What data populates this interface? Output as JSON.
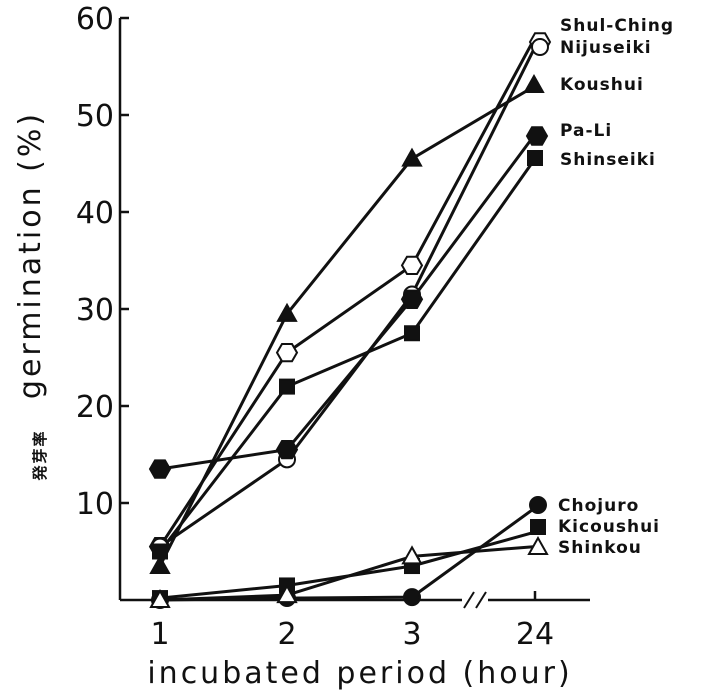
{
  "chart_data": {
    "type": "line",
    "title": "",
    "xlabel": "incubated period (hour)",
    "ylabel": "germination (%)",
    "ylabel_ja": "発芽率",
    "categories": [
      "1",
      "2",
      "3",
      "24"
    ],
    "ylim": [
      0,
      60
    ],
    "yticks": [
      "10",
      "20",
      "30",
      "40",
      "50",
      "60"
    ],
    "axis_break_between": [
      "3",
      "24"
    ],
    "grid": false,
    "legend": "inline-right",
    "series": [
      {
        "name": "Shul-Ching",
        "marker": "hexagon-open",
        "values": [
          5.5,
          25.5,
          34.5,
          58
        ]
      },
      {
        "name": "Nijuseiki",
        "marker": "circle-open",
        "values": [
          5.5,
          14.5,
          31.5,
          57
        ]
      },
      {
        "name": "Koushui",
        "marker": "triangle-filled",
        "values": [
          3.5,
          29.5,
          45.5,
          53
        ]
      },
      {
        "name": "Pa-Li",
        "marker": "hexagon-filled",
        "values": [
          13.5,
          15.5,
          31,
          48
        ]
      },
      {
        "name": "Shinseiki",
        "marker": "square-filled",
        "values": [
          5,
          22,
          27.5,
          45.5
        ]
      },
      {
        "name": "Chojuro",
        "marker": "circle-filled",
        "values": [
          0,
          0.2,
          0.3,
          9.5
        ]
      },
      {
        "name": "Kicoushui",
        "marker": "square-filled",
        "values": [
          0.2,
          1.5,
          3.5,
          7
        ]
      },
      {
        "name": "Shinkou",
        "marker": "triangle-open",
        "values": [
          0,
          0.5,
          4.5,
          5.5
        ]
      }
    ]
  }
}
